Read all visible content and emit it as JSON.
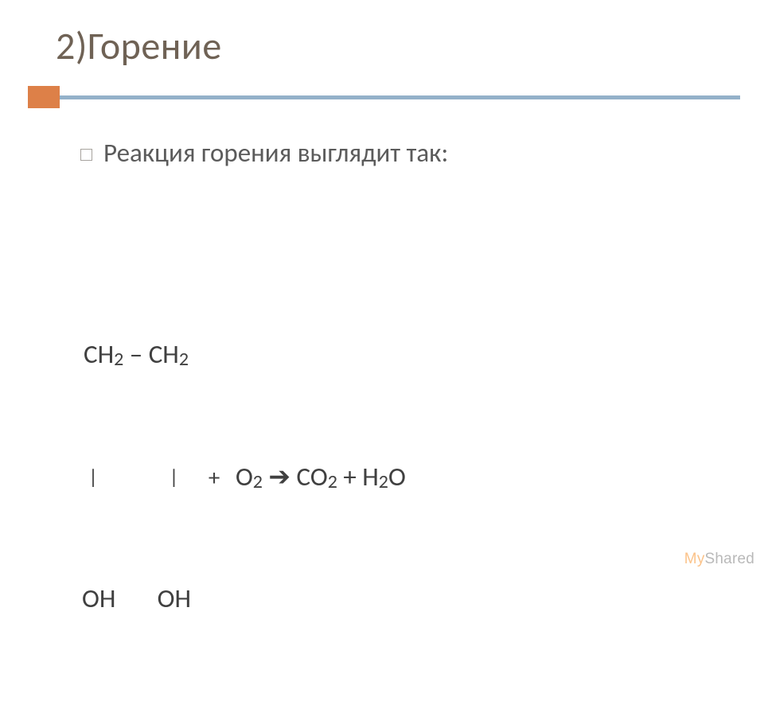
{
  "colors": {
    "title": "#6f6255",
    "accent_block": "#dd8048",
    "hr": "#94b1c9",
    "bullet_border": "#a7a39e",
    "body_text": "#5b5b5b",
    "formula_text": "#404040",
    "watermark_my": "#fbc38a",
    "watermark_shared": "#b9b9b9"
  },
  "title": "2)Горение",
  "bullet": "Реакция горения выглядит так:",
  "formula": {
    "line1_a": "CH",
    "line1_sub1": "2",
    "line1_dash": " – ",
    "line1_b": "CH",
    "line1_sub2": "2",
    "line2_pipe1": "|",
    "line2_gap1": "            ",
    "line2_pipe2": "|",
    "line2_gap2": "     ",
    "line2_plus": "+   ",
    "line2_o": "O",
    "line2_osub": "2",
    "line2_arrow": " ➔ ",
    "line2_co": "CO",
    "line2_cosub": "2",
    "line2_plus2": " + H",
    "line2_hsub": "2",
    "line2_end": "O",
    "line3_oh1": "OH",
    "line3_gap": "       ",
    "line3_oh2": "OH"
  },
  "watermark": {
    "my": "My",
    "shared": "Shared"
  }
}
